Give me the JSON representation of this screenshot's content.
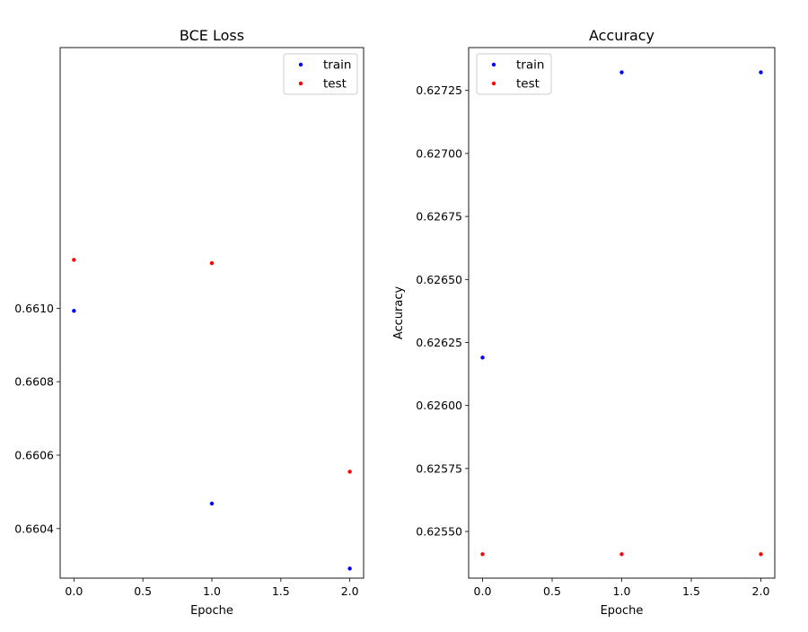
{
  "chart_data": [
    {
      "type": "scatter",
      "title": "BCE Loss",
      "xlabel": "Epoche",
      "ylabel": "",
      "xlim": [
        -0.1,
        2.1
      ],
      "ylim": [
        0.660265,
        0.66171
      ],
      "xticks": [
        0.0,
        0.5,
        1.0,
        1.5,
        2.0
      ],
      "xtick_labels": [
        "0.0",
        "0.5",
        "1.0",
        "1.5",
        "2.0"
      ],
      "yticks": [
        0.6604,
        0.6606,
        0.6608,
        0.661
      ],
      "ytick_labels": [
        "0.6604",
        "0.6606",
        "0.6608",
        "0.6610"
      ],
      "legend_position": "top-right",
      "grid": false,
      "series": [
        {
          "name": "train",
          "color": "#0000ff",
          "x": [
            0,
            1,
            2
          ],
          "y": [
            0.660993,
            0.660468,
            0.660291
          ]
        },
        {
          "name": "test",
          "color": "#ff0000",
          "x": [
            0,
            1,
            2
          ],
          "y": [
            0.661132,
            0.661123,
            0.660555
          ]
        }
      ]
    },
    {
      "type": "scatter",
      "title": "Accuracy",
      "xlabel": "Epoche",
      "ylabel": "Accuracy",
      "xlim": [
        -0.1,
        2.1
      ],
      "ylim": [
        0.625315,
        0.62742
      ],
      "xticks": [
        0.0,
        0.5,
        1.0,
        1.5,
        2.0
      ],
      "xtick_labels": [
        "0.0",
        "0.5",
        "1.0",
        "1.5",
        "2.0"
      ],
      "yticks": [
        0.6255,
        0.62575,
        0.626,
        0.62625,
        0.6265,
        0.62675,
        0.627,
        0.62725
      ],
      "ytick_labels": [
        "0.62550",
        "0.62575",
        "0.62600",
        "0.62625",
        "0.62650",
        "0.62675",
        "0.62700",
        "0.62725"
      ],
      "legend_position": "top-left",
      "grid": false,
      "series": [
        {
          "name": "train",
          "color": "#0000ff",
          "x": [
            0,
            1,
            2
          ],
          "y": [
            0.62619,
            0.627322,
            0.627322
          ]
        },
        {
          "name": "test",
          "color": "#ff0000",
          "x": [
            0,
            1,
            2
          ],
          "y": [
            0.62541,
            0.62541,
            0.62541
          ]
        }
      ]
    }
  ]
}
